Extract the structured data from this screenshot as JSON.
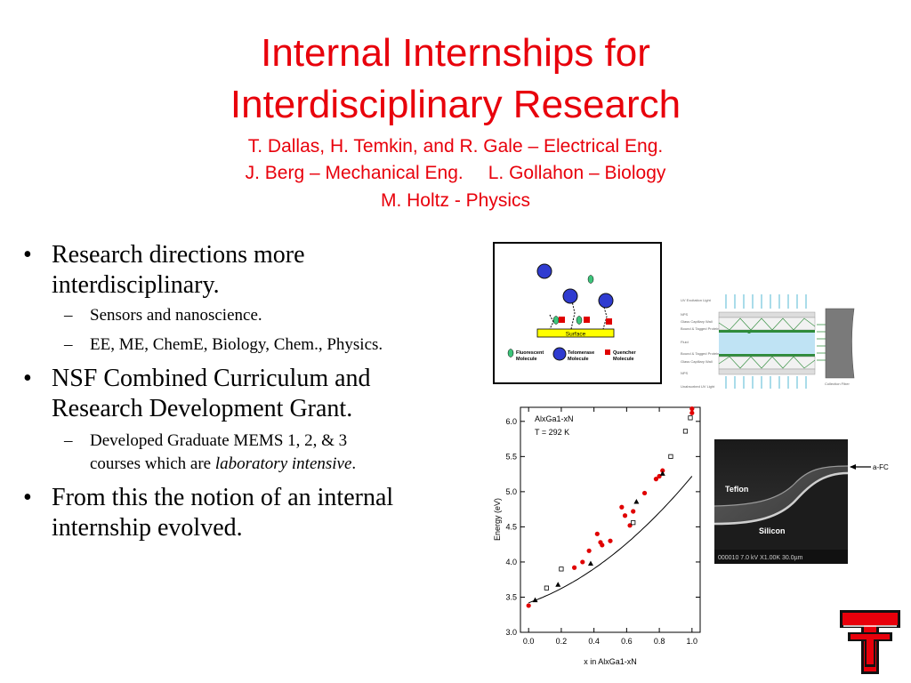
{
  "slide": {
    "title_line1": "Internal Internships for",
    "title_line2": "Interdisciplinary Research",
    "authors_line1": "T. Dallas, H. Temkin, and R. Gale – Electrical Eng.",
    "authors_line2a": "J. Berg – Mechanical Eng.",
    "authors_line2b": "L. Gollahon – Biology",
    "authors_line3": "M. Holtz - Physics",
    "accent_color": "#e8000b"
  },
  "bullets": [
    {
      "text_line1": "Research directions more",
      "text_line2": "interdisciplinary.",
      "sub": [
        "Sensors and nanoscience.",
        "EE, ME, ChemE, Biology, Chem., Physics."
      ]
    },
    {
      "text_line1": "NSF Combined Curriculum and",
      "text_line2": "Research Development Grant.",
      "sub_line1": "Developed Graduate MEMS 1, 2, & 3",
      "sub_line2_pre": "courses which are ",
      "sub_line2_em": "laboratory intensive",
      "sub_line2_post": "."
    },
    {
      "text_line1": "From this the notion of an internal",
      "text_line2": "internship evolved."
    }
  ],
  "molecule_figure": {
    "surface_label": "Surface",
    "legend": [
      {
        "line1": "Fluorescent",
        "line2": "Molecule",
        "color": "#3cc47a"
      },
      {
        "line1": "Telomerase",
        "line2": "Molecule",
        "color": "#2f3bd0"
      },
      {
        "line1": "Quencher",
        "line2": "Molecule",
        "color": "#e00000"
      }
    ]
  },
  "fiber_figure": {
    "left_labels": [
      "UV Excitation Light",
      "NPS",
      "Glass Capillary Wall",
      "Bound & Tagged Protein",
      "Fluid",
      "Bound & Tagged Protein",
      "Glass Capillary Wall",
      "NPS",
      "Unabsorbed UV Light"
    ],
    "right_label": "Collection Fiber"
  },
  "sem_image": {
    "teflon_label": "Teflon",
    "silicon_label": "Silicon",
    "afc_label": "a-FC",
    "scale_bar_text": "000010  7.0 kV X1.00K  30.0µm"
  },
  "chart_data": {
    "type": "scatter",
    "title": "",
    "annotation_line1": "AlxGa1-xN",
    "annotation_line2": "T = 292 K",
    "xlabel": "x in AlxGa1-xN",
    "ylabel": "Energy (eV)",
    "xlim": [
      -0.05,
      1.05
    ],
    "ylim": [
      3.0,
      6.2
    ],
    "x_ticks": [
      "0.0",
      "0.2",
      "0.4",
      "0.6",
      "0.8",
      "1.0"
    ],
    "y_ticks": [
      "3.0",
      "3.5",
      "4.0",
      "4.5",
      "5.0",
      "5.5",
      "6.0"
    ],
    "fit_curve": {
      "a": 3.42,
      "b": 1.8,
      "c": 0.98
    },
    "series": [
      {
        "marker": "filled-circle",
        "color": "#e00000",
        "x": [
          0.0,
          0.28,
          0.33,
          0.37,
          0.42,
          0.44,
          0.45,
          0.5,
          0.57,
          0.59,
          0.62,
          0.64,
          0.71,
          0.78,
          0.8,
          0.82,
          1.0,
          1.0
        ],
        "y": [
          3.38,
          3.92,
          4.0,
          4.16,
          4.4,
          4.28,
          4.24,
          4.3,
          4.78,
          4.66,
          4.52,
          4.72,
          4.98,
          5.18,
          5.22,
          5.3,
          6.12,
          6.18
        ]
      },
      {
        "marker": "filled-triangle",
        "color": "#000000",
        "x": [
          0.04,
          0.18,
          0.38,
          0.66,
          0.82
        ],
        "y": [
          3.46,
          3.68,
          3.98,
          4.86,
          5.26
        ]
      },
      {
        "marker": "open-square",
        "color": "#000000",
        "x": [
          0.11,
          0.2,
          0.64,
          0.87,
          0.96,
          0.99
        ],
        "y": [
          3.63,
          3.9,
          4.56,
          5.5,
          5.86,
          6.05
        ]
      }
    ]
  }
}
